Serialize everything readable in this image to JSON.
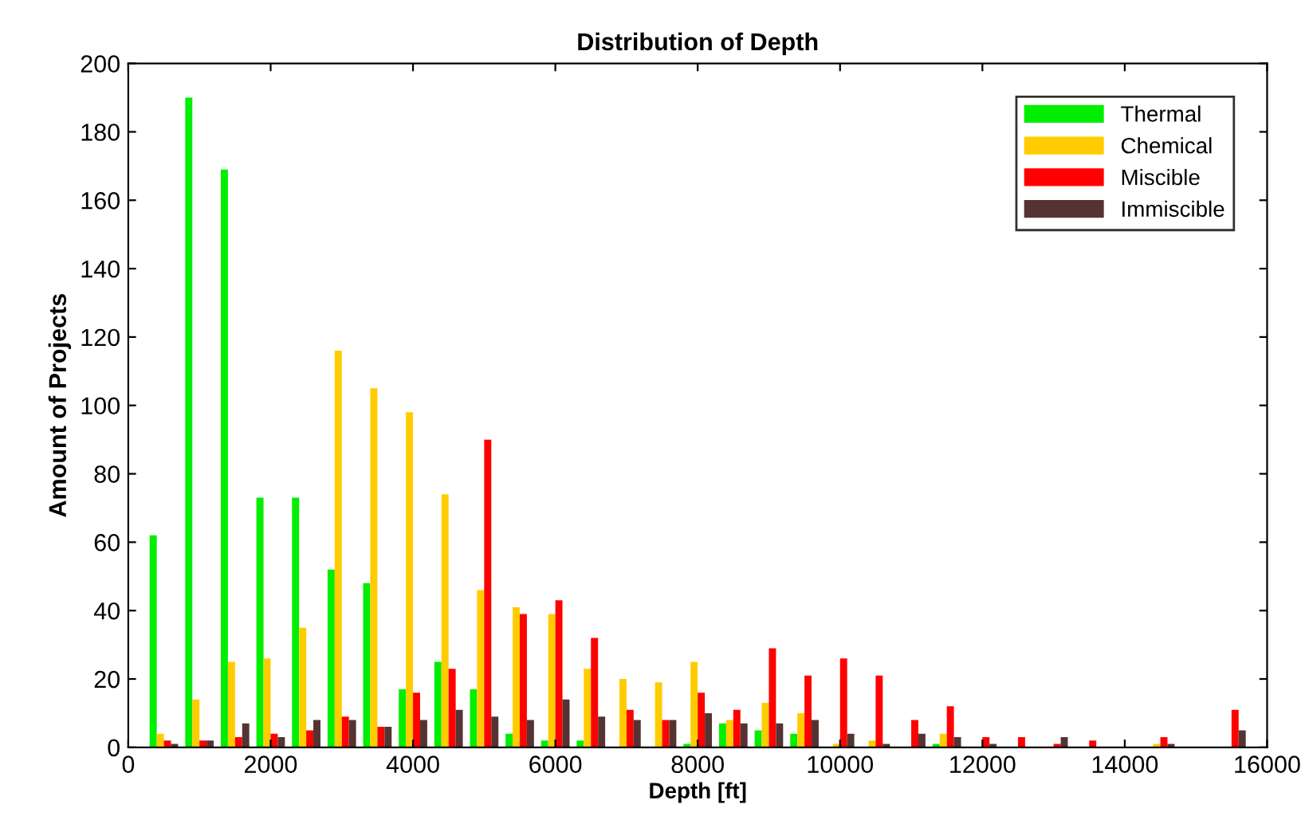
{
  "chart_data": {
    "type": "bar",
    "title": "Distribution of Depth",
    "xlabel": "Depth [ft]",
    "ylabel": "Amount of Projects",
    "x": [
      500,
      1000,
      1500,
      2000,
      2500,
      3000,
      3500,
      4000,
      4500,
      5000,
      5500,
      6000,
      6500,
      7000,
      7500,
      8000,
      8500,
      9000,
      9500,
      10000,
      10500,
      11000,
      11500,
      12000,
      12500,
      13000,
      13500,
      14000,
      14500,
      15000,
      15500
    ],
    "series": [
      {
        "name": "Thermal",
        "color": "#00ee00",
        "values": [
          62,
          190,
          169,
          73,
          73,
          52,
          48,
          17,
          25,
          17,
          4,
          2,
          2,
          0,
          0,
          1,
          7,
          5,
          4,
          0,
          0,
          0,
          1,
          0,
          0,
          0,
          0,
          0,
          0,
          0,
          0
        ]
      },
      {
        "name": "Chemical",
        "color": "#ffcc00",
        "values": [
          4,
          14,
          25,
          26,
          35,
          116,
          105,
          98,
          74,
          46,
          41,
          39,
          23,
          20,
          19,
          25,
          8,
          13,
          10,
          1,
          2,
          0,
          4,
          0,
          0,
          0,
          0,
          0,
          1,
          0,
          0
        ]
      },
      {
        "name": "Miscible",
        "color": "#ff0000",
        "values": [
          2,
          2,
          3,
          4,
          5,
          9,
          6,
          16,
          23,
          90,
          39,
          43,
          32,
          11,
          8,
          16,
          11,
          29,
          21,
          26,
          21,
          8,
          12,
          3,
          3,
          1,
          2,
          0,
          3,
          0,
          11
        ]
      },
      {
        "name": "Immiscible",
        "color": "#553333",
        "values": [
          1,
          2,
          7,
          3,
          8,
          8,
          6,
          8,
          11,
          9,
          8,
          14,
          9,
          8,
          8,
          10,
          7,
          7,
          8,
          4,
          1,
          4,
          3,
          1,
          0,
          3,
          0,
          0,
          1,
          0,
          5
        ]
      }
    ],
    "xlim": [
      0,
      16000
    ],
    "ylim": [
      0,
      200
    ],
    "xticks": [
      0,
      2000,
      4000,
      6000,
      8000,
      10000,
      12000,
      14000,
      16000
    ],
    "yticks": [
      0,
      20,
      40,
      60,
      80,
      100,
      120,
      140,
      160,
      180,
      200
    ],
    "grid": false,
    "legend": "top right"
  }
}
